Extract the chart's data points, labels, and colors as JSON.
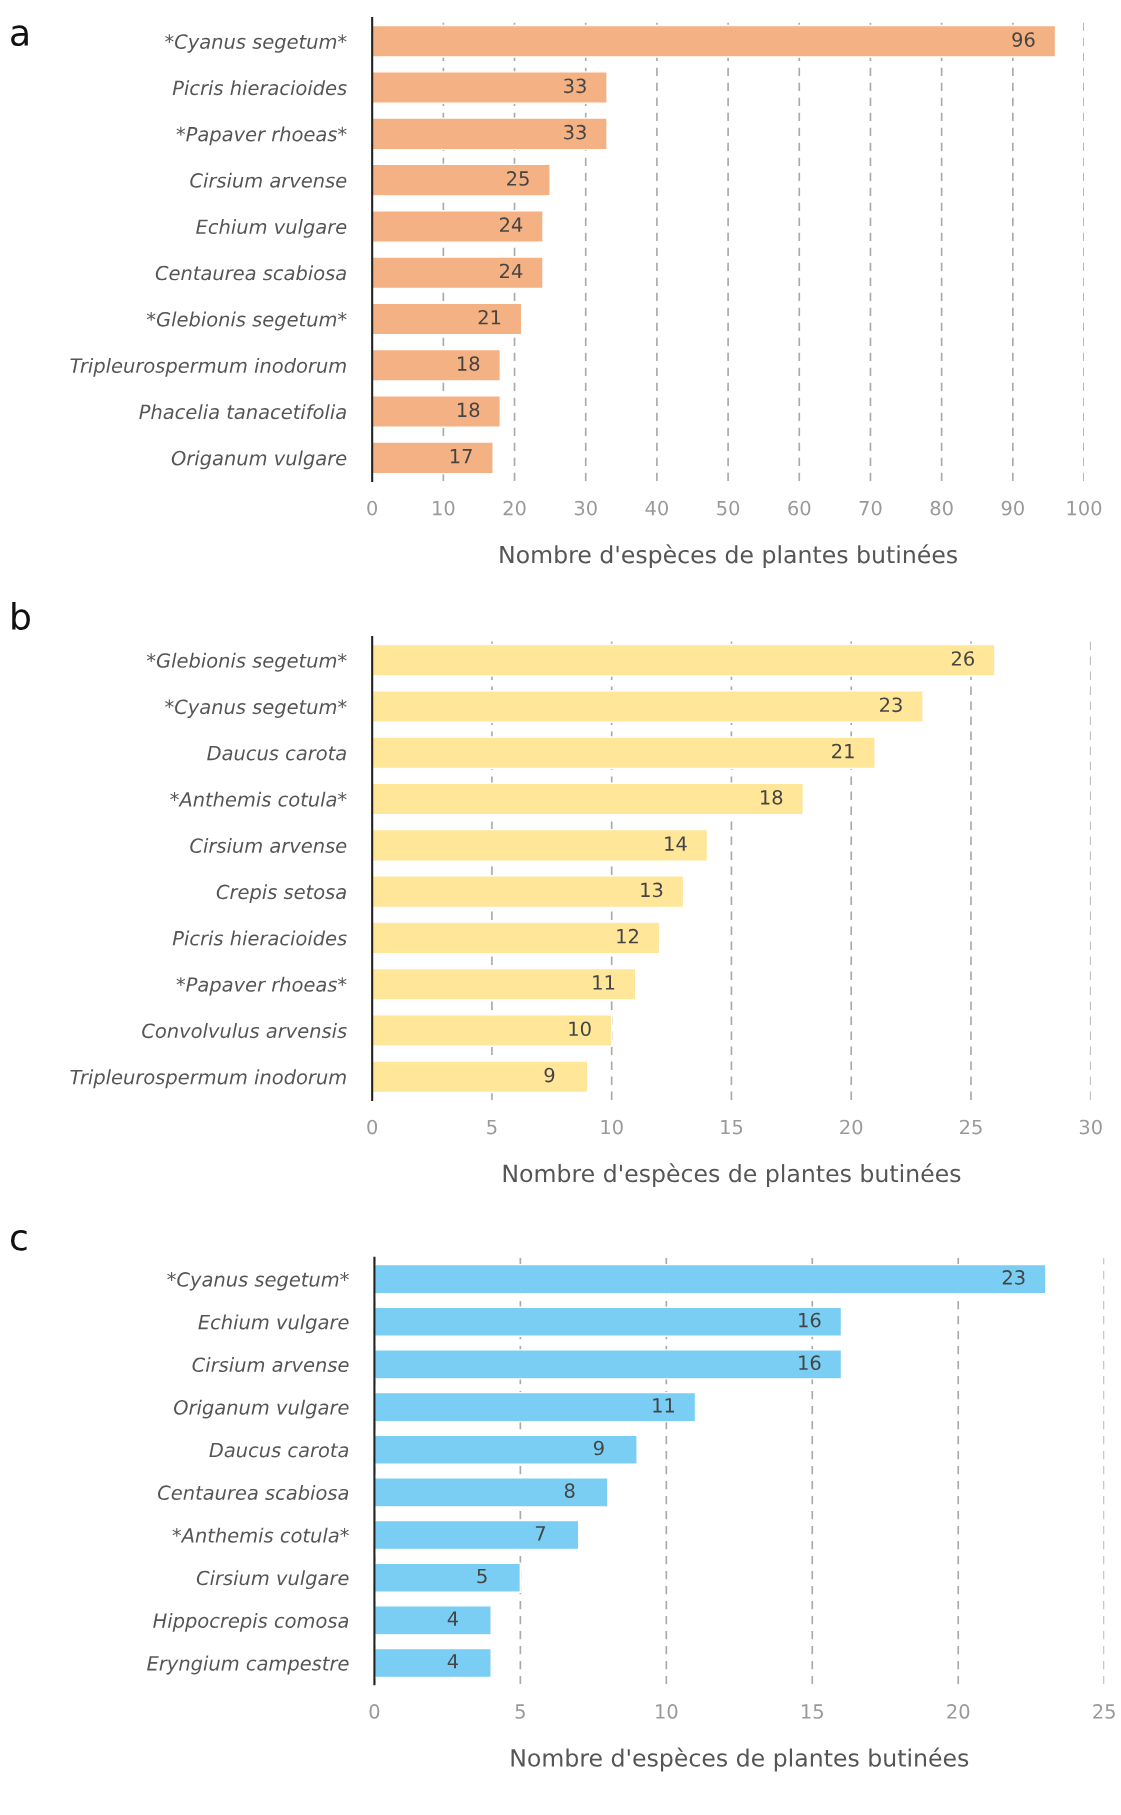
{
  "chart_data": [
    {
      "type": "bar",
      "orientation": "horizontal",
      "title": "a",
      "xlabel": "Nombre d'espèces de plantes butinées",
      "categories": [
        "*Cyanus segetum*",
        "Picris hieracioides",
        "*Papaver rhoeas*",
        "Cirsium arvense",
        "Echium vulgare",
        "Centaurea scabiosa",
        "*Glebionis segetum*",
        "Tripleurospermum inodorum",
        "Phacelia tanacetifolia",
        "Origanum vulgare"
      ],
      "values": [
        96,
        33,
        33,
        25,
        24,
        24,
        21,
        18,
        18,
        17
      ],
      "color": "#f4b183",
      "xlim": [
        0,
        100
      ],
      "xticks": [
        0,
        10,
        20,
        30,
        40,
        50,
        60,
        70,
        80,
        90,
        100
      ],
      "grid": "x",
      "data_labels": true
    },
    {
      "type": "bar",
      "orientation": "horizontal",
      "title": "b",
      "xlabel": "Nombre d'espèces de plantes butinées",
      "categories": [
        "*Glebionis segetum*",
        "*Cyanus segetum*",
        "Daucus carota",
        "*Anthemis cotula*",
        "Cirsium arvense",
        "Crepis setosa",
        "Picris hieracioides",
        "*Papaver rhoeas*",
        "Convolvulus arvensis",
        "Tripleurospermum inodorum"
      ],
      "values": [
        26,
        23,
        21,
        18,
        14,
        13,
        12,
        11,
        10,
        9
      ],
      "color": "#ffe699",
      "xlim": [
        0,
        30
      ],
      "xticks": [
        0,
        5,
        10,
        15,
        20,
        25,
        30
      ],
      "grid": "x",
      "data_labels": true
    },
    {
      "type": "bar",
      "orientation": "horizontal",
      "title": "c",
      "xlabel": "Nombre d'espèces de plantes butinées",
      "categories": [
        "*Cyanus segetum*",
        "Echium vulgare",
        "Cirsium arvense",
        "Origanum vulgare",
        "Daucus carota",
        "Centaurea scabiosa",
        "*Anthemis cotula*",
        "Cirsium vulgare",
        "Hippocrepis comosa",
        "Eryngium campestre"
      ],
      "values": [
        23,
        16,
        16,
        11,
        9,
        8,
        7,
        5,
        4,
        4
      ],
      "color": "#7acef4",
      "xlim": [
        0,
        25
      ],
      "xticks": [
        0,
        5,
        10,
        15,
        20,
        25
      ],
      "grid": "x",
      "data_labels": true
    }
  ]
}
